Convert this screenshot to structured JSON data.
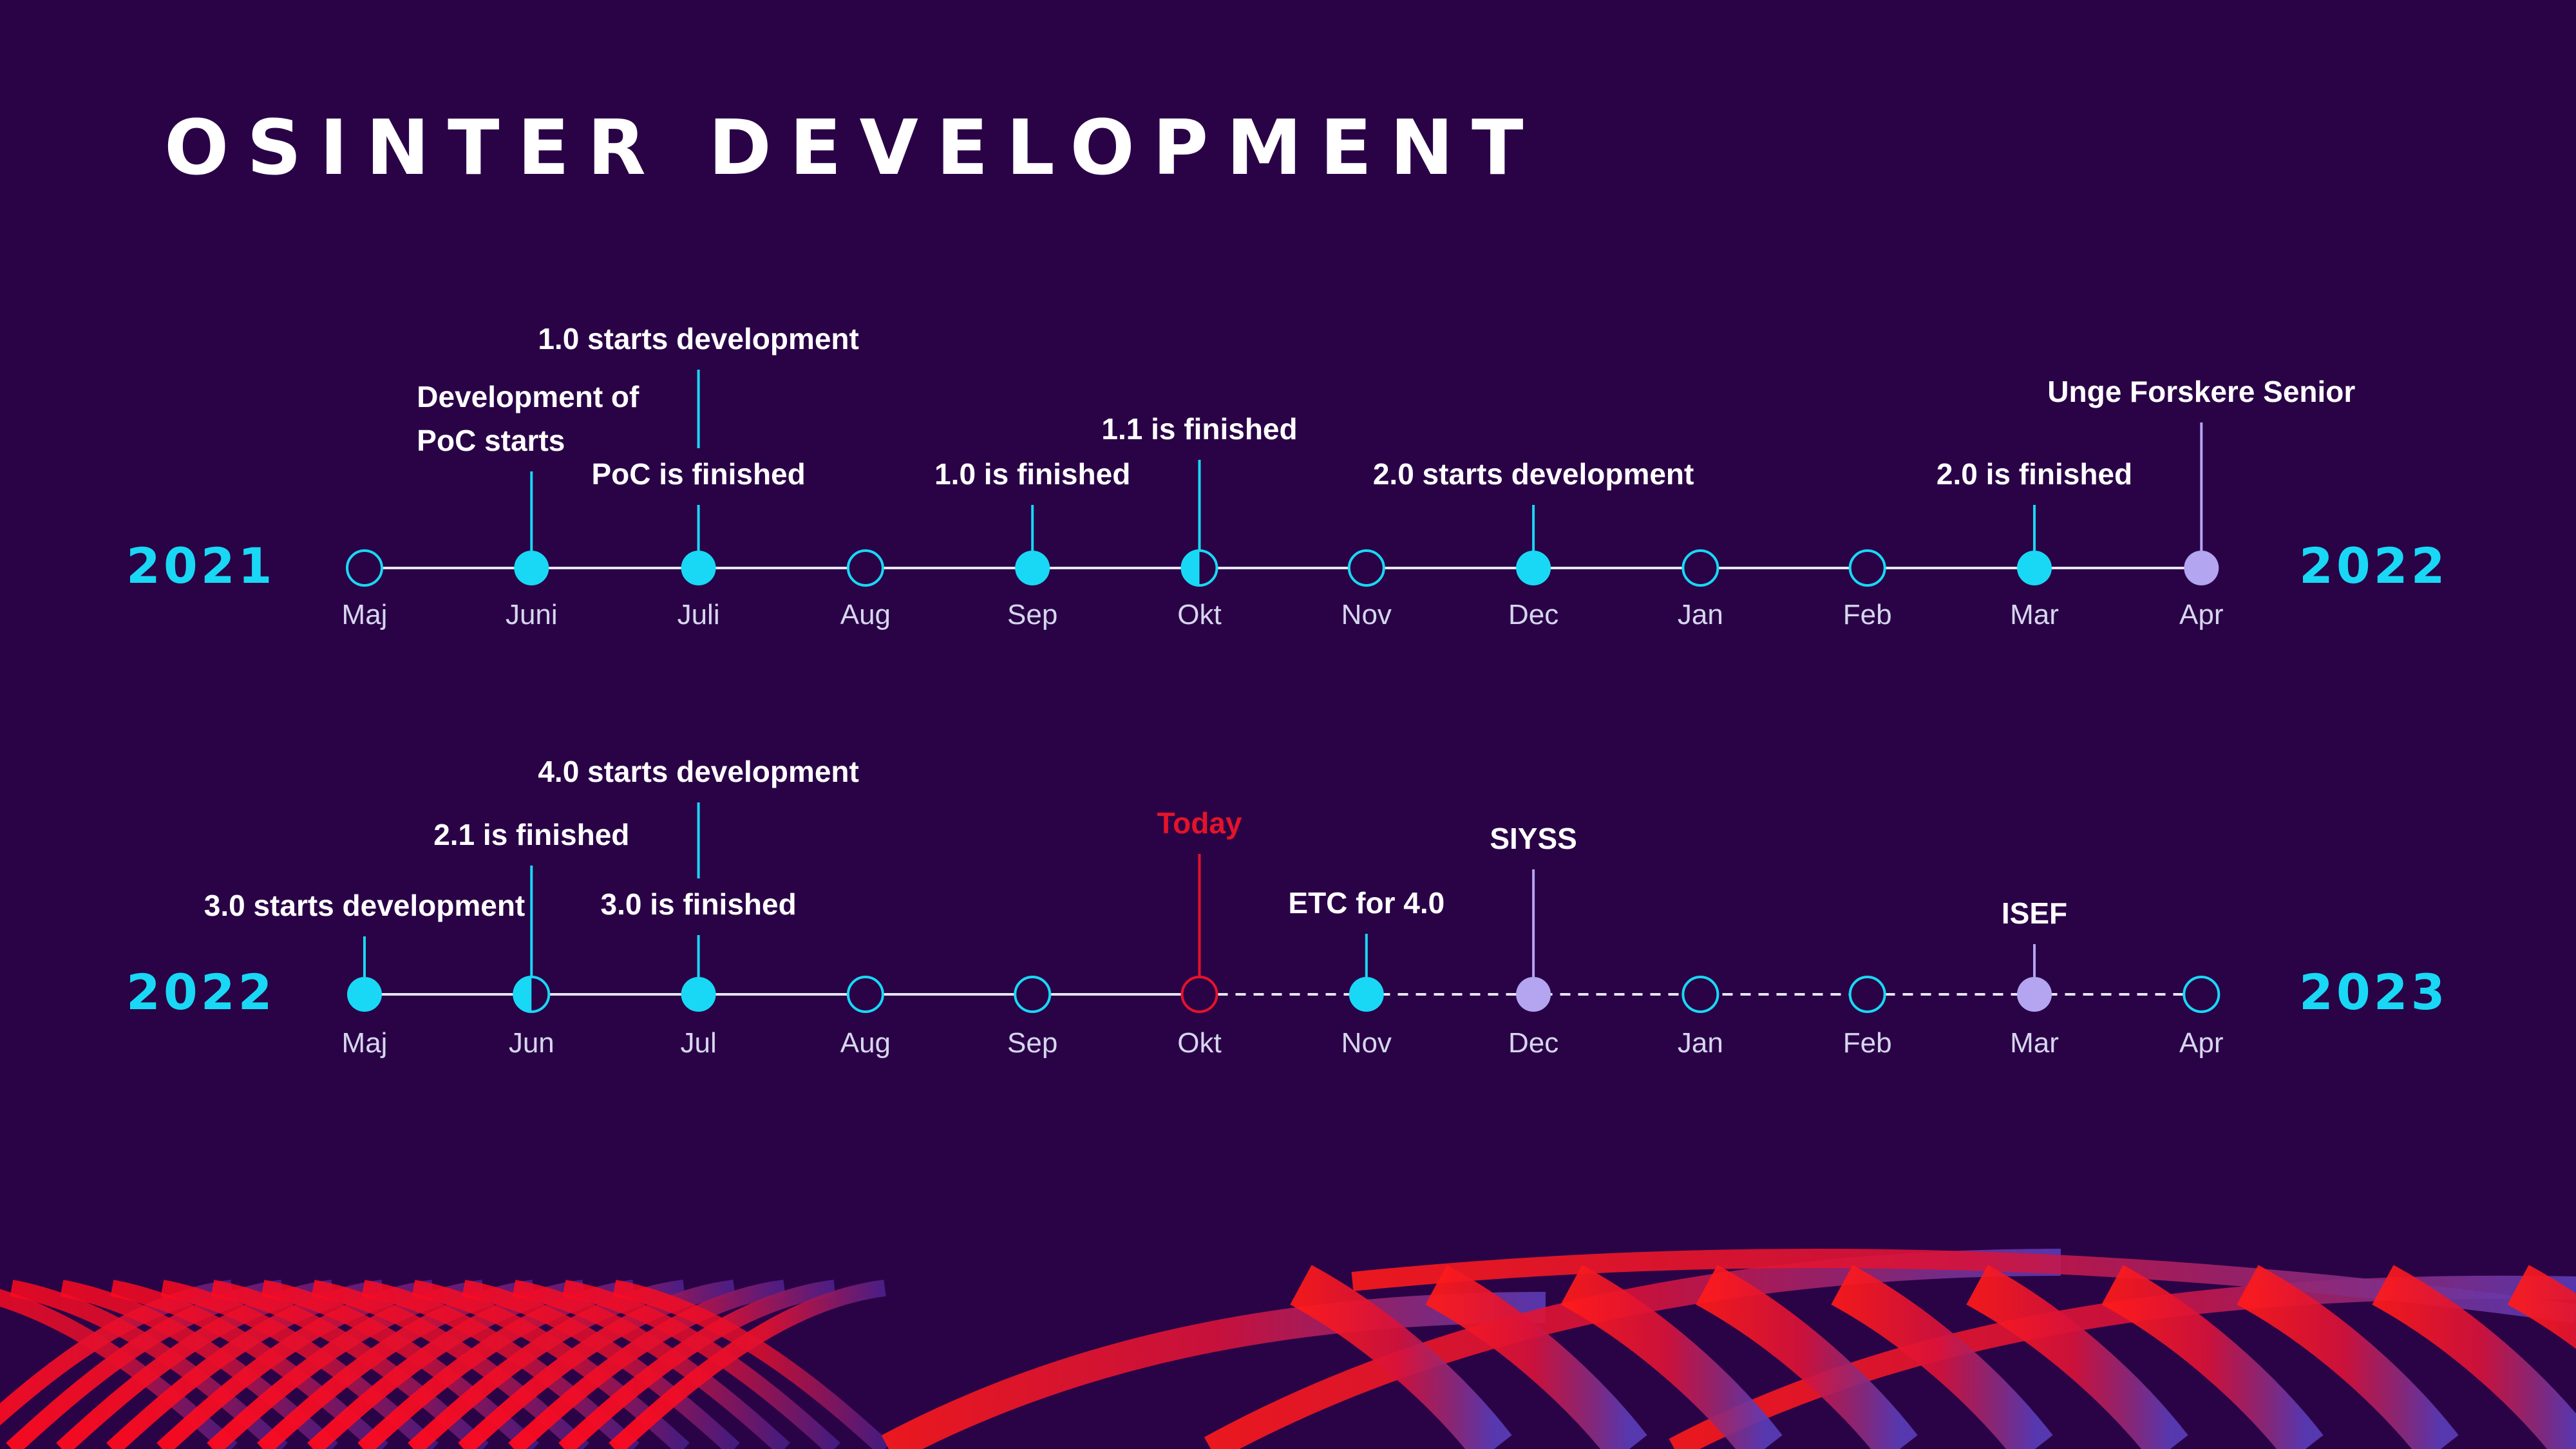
{
  "title": "OSINTER DEVELOPMENT",
  "colors": {
    "background": "#2a0347",
    "accent": "#19d8f5",
    "future": "#b3a5f0",
    "today": "#e4132a",
    "line": "#e6e6f2"
  },
  "timelines": [
    {
      "start_year": "2021",
      "end_year": "2022",
      "months": [
        {
          "label": "Maj",
          "state": "empty"
        },
        {
          "label": "Juni",
          "state": "filled"
        },
        {
          "label": "Juli",
          "state": "filled"
        },
        {
          "label": "Aug",
          "state": "empty"
        },
        {
          "label": "Sep",
          "state": "filled"
        },
        {
          "label": "Okt",
          "state": "half"
        },
        {
          "label": "Nov",
          "state": "empty"
        },
        {
          "label": "Dec",
          "state": "filled"
        },
        {
          "label": "Jan",
          "state": "empty"
        },
        {
          "label": "Feb",
          "state": "empty"
        },
        {
          "label": "Mar",
          "state": "filled"
        },
        {
          "label": "Apr",
          "state": "future"
        }
      ],
      "events": [
        {
          "month_index": 1,
          "lines": [
            "Development of",
            "PoC starts"
          ],
          "color": "accent"
        },
        {
          "month_index": 2,
          "lines": [
            "PoC is finished"
          ],
          "color": "accent"
        },
        {
          "month_index": 2,
          "lines": [
            "1.0 starts development"
          ],
          "color": "accent"
        },
        {
          "month_index": 4,
          "lines": [
            "1.0 is finished"
          ],
          "color": "accent"
        },
        {
          "month_index": 5,
          "lines": [
            "1.1 is finished"
          ],
          "color": "accent"
        },
        {
          "month_index": 7,
          "lines": [
            "2.0 starts development"
          ],
          "color": "accent"
        },
        {
          "month_index": 10,
          "lines": [
            "2.0 is finished"
          ],
          "color": "accent"
        },
        {
          "month_index": 11,
          "lines": [
            "Unge Forskere Senior"
          ],
          "color": "future"
        }
      ]
    },
    {
      "start_year": "2022",
      "end_year": "2023",
      "months": [
        {
          "label": "Maj",
          "state": "filled"
        },
        {
          "label": "Jun",
          "state": "half"
        },
        {
          "label": "Jul",
          "state": "filled"
        },
        {
          "label": "Aug",
          "state": "empty"
        },
        {
          "label": "Sep",
          "state": "empty"
        },
        {
          "label": "Okt",
          "state": "today"
        },
        {
          "label": "Nov",
          "state": "filled"
        },
        {
          "label": "Dec",
          "state": "future"
        },
        {
          "label": "Jan",
          "state": "empty"
        },
        {
          "label": "Feb",
          "state": "empty"
        },
        {
          "label": "Mar",
          "state": "future"
        },
        {
          "label": "Apr",
          "state": "empty"
        }
      ],
      "events": [
        {
          "month_index": 0,
          "lines": [
            "3.0 starts development"
          ],
          "color": "accent"
        },
        {
          "month_index": 1,
          "lines": [
            "2.1 is finished"
          ],
          "color": "accent"
        },
        {
          "month_index": 2,
          "lines": [
            "3.0 is finished"
          ],
          "color": "accent"
        },
        {
          "month_index": 2,
          "lines": [
            "4.0 starts development"
          ],
          "color": "accent"
        },
        {
          "month_index": 5,
          "lines": [
            "Today"
          ],
          "color": "today"
        },
        {
          "month_index": 6,
          "lines": [
            "ETC for 4.0"
          ],
          "color": "accent"
        },
        {
          "month_index": 7,
          "lines": [
            "SIYSS"
          ],
          "color": "future"
        },
        {
          "month_index": 10,
          "lines": [
            "ISEF"
          ],
          "color": "future"
        }
      ]
    }
  ]
}
